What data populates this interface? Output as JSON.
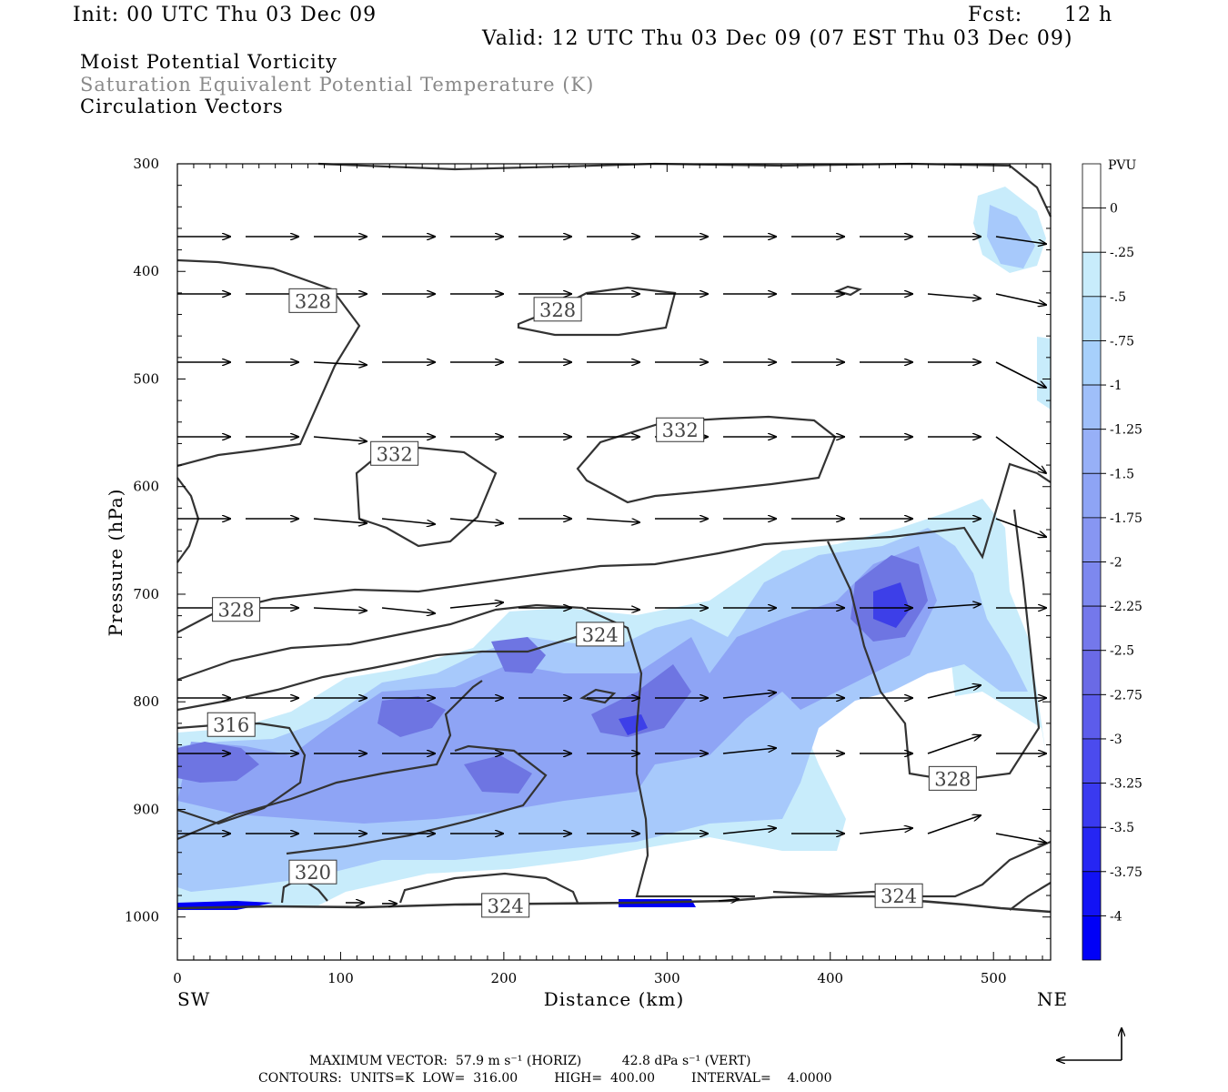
{
  "header": {
    "init": "Init: 00 UTC Thu 03 Dec 09",
    "fcst_label": "Fcst:",
    "fcst_value": "12 h",
    "valid": "Valid: 12 UTC Thu 03 Dec 09 (07 EST Thu 03 Dec 09)"
  },
  "titles": {
    "line1": "Moist Potential Vorticity",
    "line2": "Saturation Equivalent Potential Temperature (K)",
    "line3": "Circulation Vectors"
  },
  "footer": {
    "max_vector": "MAXIMUM VECTOR:  57.9 m s⁻¹ (HORIZ)          42.8 dPa s⁻¹ (VERT)",
    "contours": "CONTOURS:  UNITS=K  LOW=  316.00         HIGH=  400.00         INTERVAL=    4.0000"
  },
  "colors": {
    "contour": "#333333",
    "fill_levels": [
      "#c8ecfb",
      "#a7c9fb",
      "#8ea4f5",
      "#6e75e2",
      "#3d3fe8",
      "#0000f5"
    ]
  },
  "chart_data": {
    "type": "cross-section",
    "xlabel": "Distance (km)",
    "ylabel": "Pressure (hPa)",
    "xlim": [
      0,
      535
    ],
    "ylim": [
      1040,
      300
    ],
    "x_ticks": [
      "0",
      "100",
      "200",
      "300",
      "400",
      "500"
    ],
    "y_ticks": [
      "300",
      "400",
      "500",
      "600",
      "700",
      "800",
      "900",
      "1000"
    ],
    "x_end_labels": {
      "left": "SW",
      "right": "NE"
    },
    "colorbar": {
      "unit": "PVU",
      "labels": [
        "0",
        "-.25",
        "-.5",
        "-.75",
        "-1",
        "-1.25",
        "-1.5",
        "-1.75",
        "-2",
        "-2.25",
        "-2.5",
        "-2.75",
        "-3",
        "-3.25",
        "-3.5",
        "-3.75",
        "-4"
      ]
    },
    "contour_labels": [
      {
        "text": "328",
        "x": 83,
        "p": 428
      },
      {
        "text": "328",
        "x": 233,
        "p": 436
      },
      {
        "text": "332",
        "x": 133,
        "p": 570
      },
      {
        "text": "332",
        "x": 308,
        "p": 548
      },
      {
        "text": "328",
        "x": 36,
        "p": 715
      },
      {
        "text": "324",
        "x": 259,
        "p": 738
      },
      {
        "text": "316",
        "x": 33,
        "p": 822
      },
      {
        "text": "320",
        "x": 83,
        "p": 959
      },
      {
        "text": "324",
        "x": 201,
        "p": 990
      },
      {
        "text": "324",
        "x": 442,
        "p": 981
      },
      {
        "text": "328",
        "x": 475,
        "p": 872
      }
    ]
  }
}
